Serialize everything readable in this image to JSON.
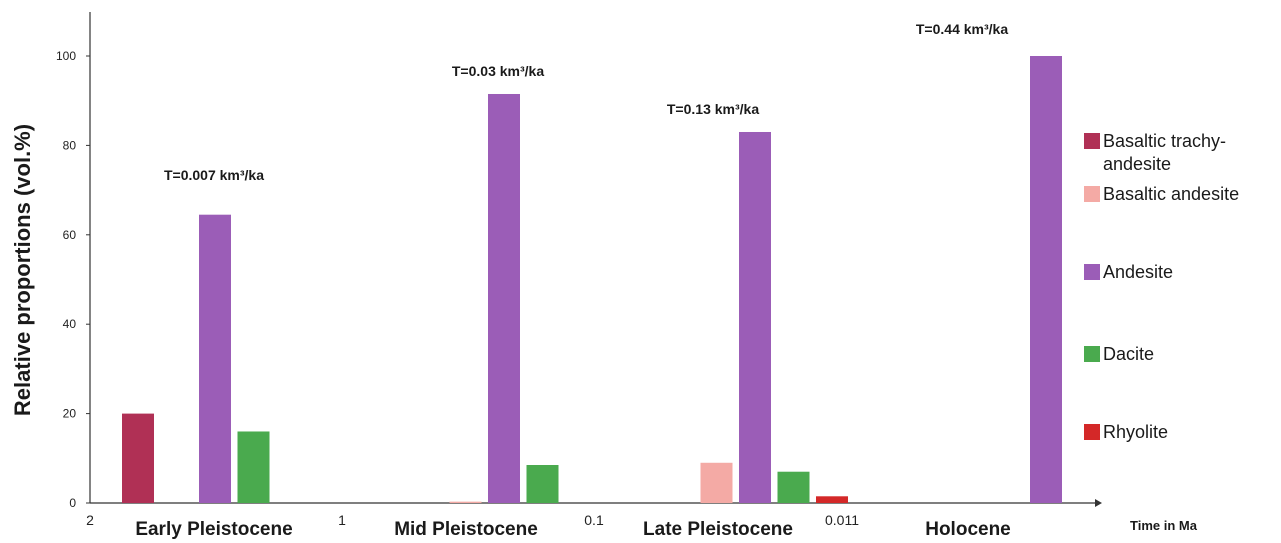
{
  "chart_data": {
    "type": "bar",
    "ylabel": "Relative proportions (vol.%)",
    "xlabel": "Time in Ma",
    "ylim": [
      0,
      110
    ],
    "y_ticks": [
      "0",
      "20",
      "40",
      "60",
      "80",
      "100"
    ],
    "grid": false,
    "legend_placement": "right",
    "boundaries": [
      "2",
      "1",
      "0.1",
      "0.011"
    ],
    "categories": [
      "Early Pleistocene",
      "Mid Pleistocene",
      "Late Pleistocene",
      "Holocene"
    ],
    "annotations": [
      "T=0.007 km³/ka",
      "T=0.03 km³/ka",
      "T=0.13 km³/ka",
      "T=0.44 km³/ka"
    ],
    "series": [
      {
        "name": "Basaltic trachy-andesite",
        "legend_lines": [
          "Basaltic trachy-",
          "andesite"
        ],
        "color": "#b03055",
        "values": [
          20,
          0,
          0,
          0
        ]
      },
      {
        "name": "Basaltic andesite",
        "legend_lines": [
          "Basaltic andesite"
        ],
        "color": "#f4aaa5",
        "values": [
          0,
          0.3,
          9,
          0
        ]
      },
      {
        "name": "Andesite",
        "legend_lines": [
          "Andesite"
        ],
        "color": "#9b5db7",
        "values": [
          64.5,
          91.5,
          83,
          100
        ]
      },
      {
        "name": "Dacite",
        "legend_lines": [
          "Dacite"
        ],
        "color": "#4aaa4e",
        "values": [
          16,
          8.5,
          7,
          0
        ]
      },
      {
        "name": "Rhyolite",
        "legend_lines": [
          "Rhyolite"
        ],
        "color": "#d42828",
        "values": [
          0,
          0,
          1.5,
          0
        ]
      }
    ]
  }
}
